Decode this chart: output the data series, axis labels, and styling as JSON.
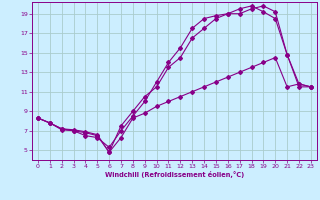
{
  "xlabel": "Windchill (Refroidissement éolien,°C)",
  "bg_color": "#cceeff",
  "grid_color": "#aacccc",
  "line_color": "#880088",
  "xlim": [
    -0.5,
    23.5
  ],
  "ylim": [
    4.0,
    20.2
  ],
  "xticks": [
    0,
    1,
    2,
    3,
    4,
    5,
    6,
    7,
    8,
    9,
    10,
    11,
    12,
    13,
    14,
    15,
    16,
    17,
    18,
    19,
    20,
    21,
    22,
    23
  ],
  "yticks": [
    5,
    7,
    9,
    11,
    13,
    15,
    17,
    19
  ],
  "line1_x": [
    0,
    1,
    2,
    3,
    4,
    5,
    6,
    7,
    8,
    9,
    10,
    11,
    12,
    13,
    14,
    15,
    16,
    17,
    18,
    19,
    20,
    21,
    22,
    23
  ],
  "line1_y": [
    8.3,
    7.8,
    7.2,
    7.1,
    6.9,
    6.6,
    4.8,
    6.3,
    8.3,
    8.8,
    9.5,
    10.0,
    10.5,
    11.0,
    11.5,
    12.0,
    12.5,
    13.0,
    13.5,
    14.0,
    14.5,
    11.5,
    11.8,
    11.5
  ],
  "line2_x": [
    0,
    1,
    2,
    3,
    4,
    5,
    6,
    7,
    8,
    9,
    10,
    11,
    12,
    13,
    14,
    15,
    16,
    17,
    18,
    19,
    20,
    21,
    22,
    23
  ],
  "line2_y": [
    8.3,
    7.8,
    7.2,
    7.0,
    6.8,
    6.5,
    4.8,
    7.5,
    9.0,
    10.5,
    11.5,
    13.5,
    14.5,
    16.5,
    17.5,
    18.5,
    19.0,
    19.5,
    19.8,
    19.2,
    18.5,
    14.8,
    11.8,
    11.5
  ],
  "line3_x": [
    0,
    1,
    2,
    3,
    4,
    5,
    6,
    7,
    8,
    9,
    10,
    11,
    12,
    13,
    14,
    15,
    16,
    17,
    18,
    19,
    20,
    21,
    22,
    23
  ],
  "line3_y": [
    8.3,
    7.8,
    7.1,
    7.0,
    6.5,
    6.3,
    5.3,
    7.0,
    8.5,
    10.0,
    12.0,
    14.0,
    15.5,
    17.5,
    18.5,
    18.8,
    19.0,
    19.0,
    19.5,
    19.8,
    19.2,
    14.8,
    11.5,
    11.5
  ]
}
